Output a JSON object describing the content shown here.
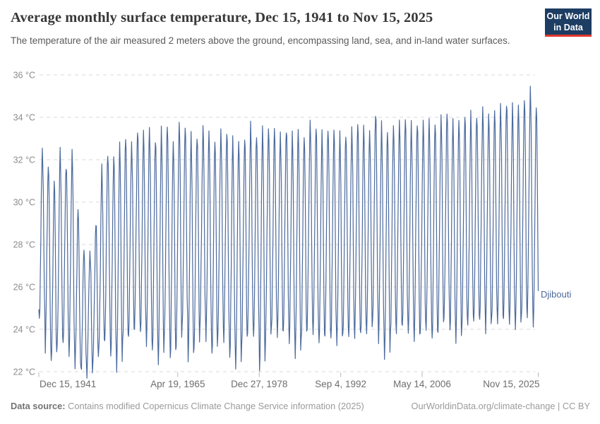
{
  "header": {
    "title": "Average monthly surface temperature, Dec 15, 1941 to Nov 15, 2025",
    "subtitle": "The temperature of the air measured 2 meters above the ground, encompassing land, sea, and in-land water surfaces.",
    "logo": {
      "line1": "Our World",
      "line2": "in Data",
      "bg_color": "#1d3d63",
      "accent_color": "#e2372f"
    }
  },
  "footer": {
    "data_source_label": "Data source:",
    "data_source_text": "Contains modified Copernicus Climate Change Service information (2025)",
    "link_text": "OurWorldinData.org/climate-change | CC BY"
  },
  "chart_data": {
    "type": "line",
    "title": "Average monthly surface temperature, Dec 15, 1941 to Nov 15, 2025",
    "entity": "Djibouti",
    "unit": "°C",
    "line_color": "#4c6a9c",
    "grid": "horizontal-dashed",
    "legend_position": "end-of-line-label",
    "ylim": [
      22,
      36
    ],
    "y_ticks": [
      22,
      24,
      26,
      28,
      30,
      32,
      34,
      36
    ],
    "y_tick_suffix": " °C",
    "x_range": [
      1941.956,
      2025.874
    ],
    "x_ticks": [
      {
        "label": "Dec 15, 1941",
        "year": 1941.956
      },
      {
        "label": "Apr 19, 1965",
        "year": 1965.299
      },
      {
        "label": "Dec 27, 1978",
        "year": 1978.989
      },
      {
        "label": "Sep 4, 1992",
        "year": 1992.678
      },
      {
        "label": "May 14, 2006",
        "year": 2006.366
      },
      {
        "label": "Nov 15, 2025",
        "year": 2025.874
      }
    ],
    "series": {
      "name": "Djibouti",
      "start_month": "1941-12",
      "end_month": "2025-11",
      "monthly_shape": [
        0.02,
        0.1,
        0.28,
        0.48,
        0.7,
        0.9,
        1.0,
        0.93,
        0.76,
        0.46,
        0.2,
        0.06
      ],
      "first_year": 1942,
      "annual_summer_max": [
        32.5,
        31.8,
        30.9,
        32.4,
        31.9,
        32.3,
        29.6,
        27.8,
        27.7,
        29.0,
        31.5,
        32.4,
        32.2,
        32.6,
        33.1,
        32.8,
        33.4,
        33.2,
        33.5,
        33.1,
        33.3,
        33.6,
        32.9,
        33.8,
        33.5,
        33.1,
        33.3,
        33.5,
        33.2,
        33.0,
        33.4,
        33.3,
        32.9,
        33.0,
        33.1,
        33.5,
        33.2,
        33.6,
        33.5,
        33.4,
        33.2,
        33.6,
        33.1,
        33.4,
        33.2,
        33.8,
        33.5,
        33.2,
        33.6,
        33.4,
        33.1,
        33.3,
        33.5,
        33.7,
        33.5,
        33.4,
        34.3,
        33.5,
        33.4,
        33.7,
        33.8,
        33.9,
        33.7,
        33.9,
        33.7,
        33.8,
        33.9,
        34.0,
        34.2,
        33.8,
        34.0,
        34.1,
        34.0,
        34.2,
        34.5,
        34.1,
        34.3,
        34.6,
        34.8,
        34.4,
        34.6,
        35.0,
        35.3,
        34.5
      ],
      "annual_winter_min": [
        24.3,
        23.0,
        22.1,
        23.1,
        23.2,
        22.6,
        22.0,
        21.8,
        21.9,
        22.2,
        22.8,
        23.4,
        22.5,
        21.9,
        23.0,
        23.6,
        24.0,
        23.4,
        23.1,
        22.8,
        22.2,
        23.4,
        22.3,
        23.3,
        23.8,
        22.2,
        23.0,
        24.0,
        23.3,
        22.4,
        23.8,
        23.2,
        22.2,
        22.1,
        23.0,
        23.7,
        23.3,
        21.8,
        23.4,
        23.6,
        23.5,
        23.8,
        23.1,
        22.4,
        23.2,
        24.1,
        23.4,
        23.0,
        23.7,
        23.3,
        23.1,
        23.4,
        23.6,
        23.5,
        23.3,
        23.8,
        24.2,
        23.1,
        22.3,
        23.6,
        23.9,
        23.7,
        23.6,
        23.4,
        23.5,
        23.8,
        23.2,
        23.9,
        24.3,
        23.5,
        23.4,
        23.8,
        24.0,
        24.1,
        24.3,
        23.8,
        24.0,
        24.2,
        24.4,
        23.9,
        23.8,
        24.3,
        24.6,
        23.7
      ]
    }
  }
}
